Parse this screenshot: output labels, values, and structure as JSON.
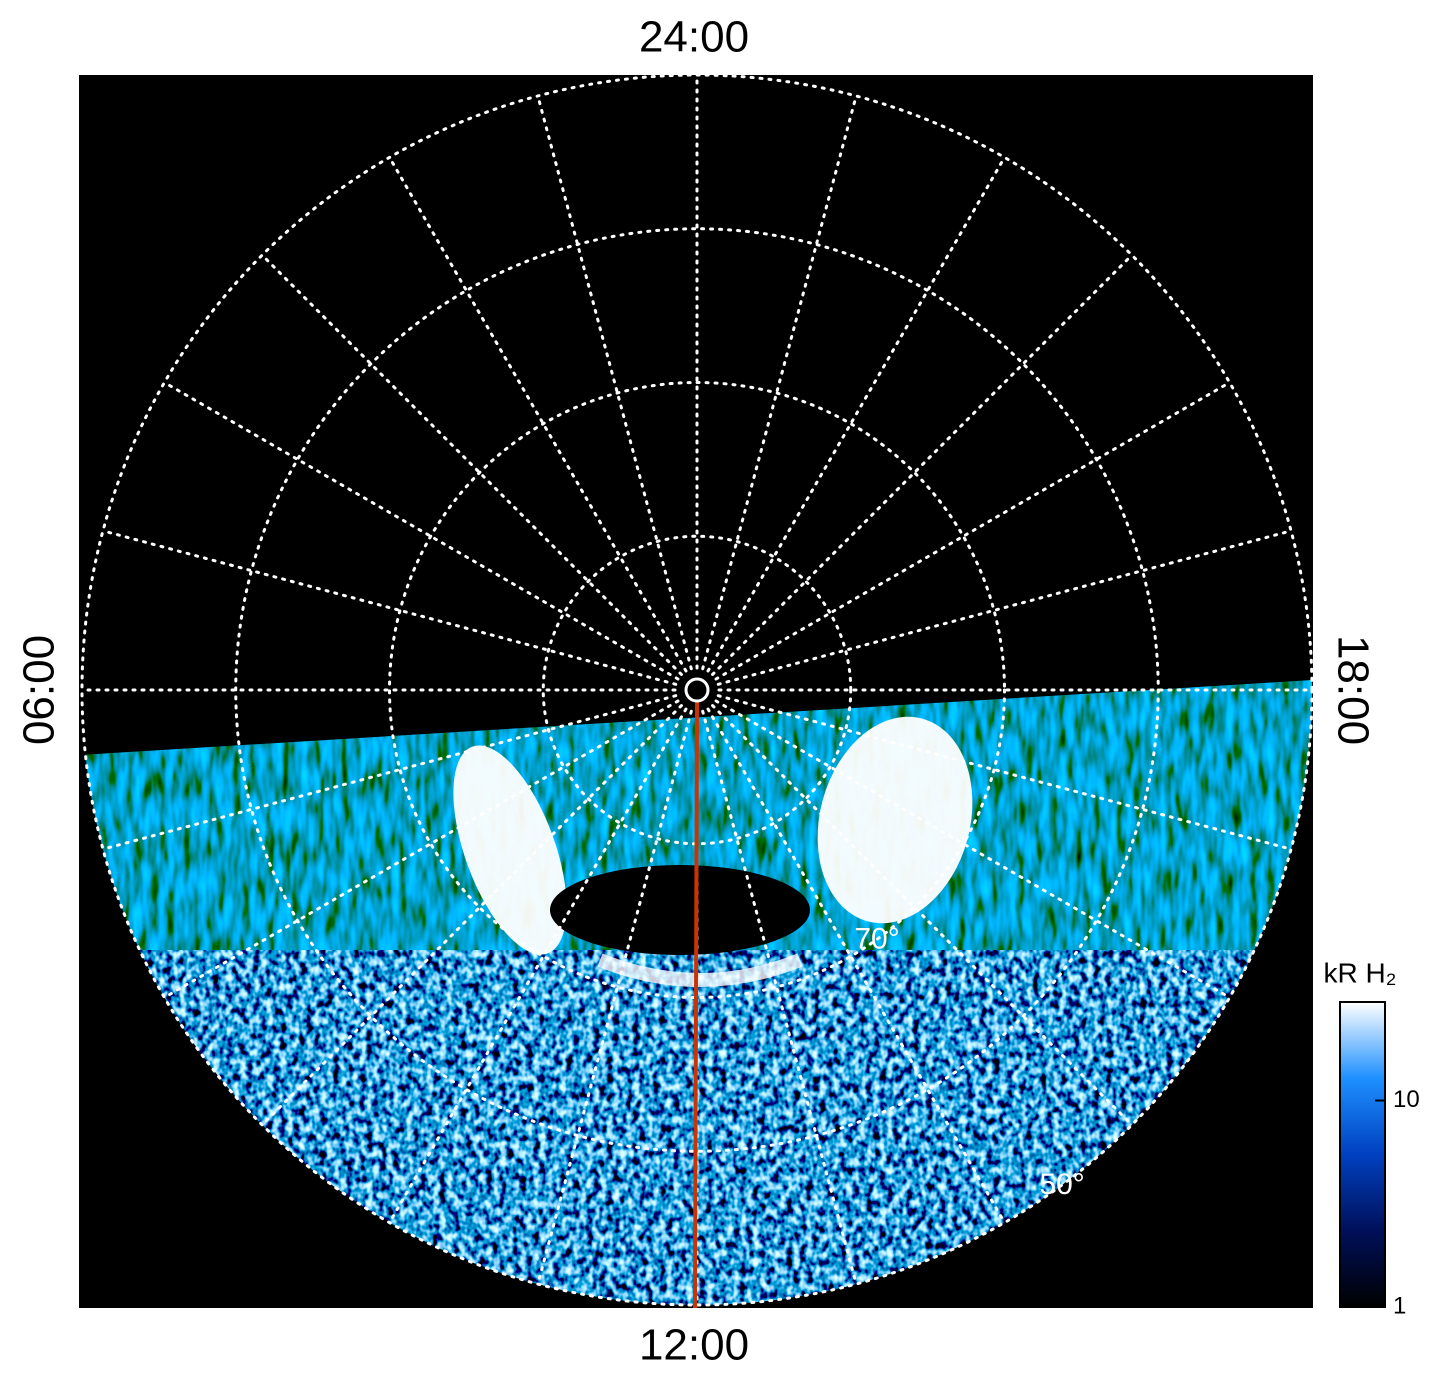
{
  "chart_data": {
    "type": "polar-image",
    "theta_labels": [
      "24:00",
      "06:00",
      "12:00",
      "18:00"
    ],
    "theta_ticks": [
      0,
      1,
      2,
      3,
      4,
      5,
      6,
      7,
      8,
      9,
      10,
      11,
      12,
      13,
      14,
      15,
      16,
      17,
      18,
      19,
      20,
      21,
      22,
      23
    ],
    "rlim": [
      90,
      50
    ],
    "rticks": [
      80,
      {
        "value": 70,
        "label": "70°"
      },
      60,
      {
        "value": 50,
        "label": "50°"
      }
    ],
    "grid": true,
    "colorbar": {
      "label": "kR H₂",
      "lim": [
        1,
        30
      ],
      "ticks": [
        1,
        10
      ],
      "log": true,
      "colors": [
        "#000000",
        "#00105a",
        "#0040c0",
        "#1e90ff",
        "#ffffff"
      ]
    }
  }
}
